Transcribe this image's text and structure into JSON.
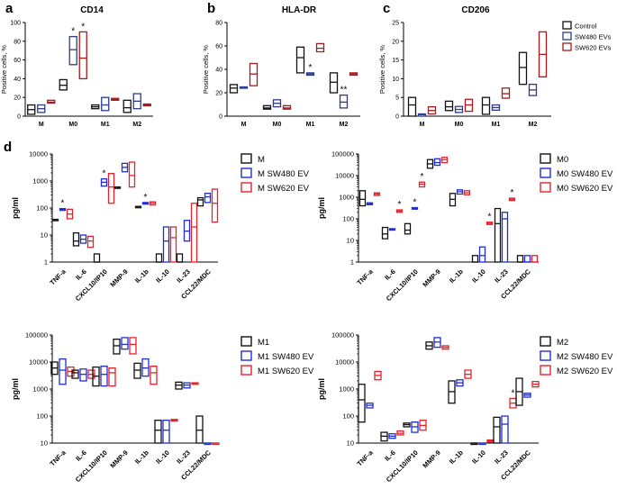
{
  "colors": {
    "black": "#111111",
    "blue": "#1e2dd8",
    "red": "#e8222a",
    "darkred": "#a8181c",
    "blue_top": "#2c3a8c"
  },
  "top_legend": [
    {
      "label": "Control",
      "color": "#111111"
    },
    {
      "label": "SW480 EVs",
      "color": "#2c3a8c"
    },
    {
      "label": "SW620 EVs",
      "color": "#a8181c"
    }
  ],
  "chart_data": [
    {
      "panel_letter": "a",
      "type": "box",
      "title": "CD14",
      "ylabel": "Positive cells, %",
      "yscale": "linear",
      "ylim": [
        0,
        100
      ],
      "yticks": [
        "0",
        "20",
        "40",
        "60",
        "80",
        "100"
      ],
      "categories": [
        "M",
        "M0",
        "M1",
        "M2"
      ],
      "series": [
        {
          "name": "Control",
          "boxes": [
            [
              2,
              7,
              12
            ],
            [
              28,
              33,
              39
            ],
            [
              8,
              10,
              12
            ],
            [
              4,
              9,
              17
            ]
          ]
        },
        {
          "name": "SW480 EVs",
          "boxes": [
            [
              4,
              8,
              12
            ],
            [
              55,
              71,
              85
            ],
            [
              6,
              12,
              20
            ],
            [
              8,
              16,
              24
            ]
          ]
        },
        {
          "name": "SW620 EVs",
          "boxes": [
            [
              14,
              15,
              17
            ],
            [
              40,
              62,
              90
            ],
            [
              17,
              18,
              19
            ],
            [
              11,
              12,
              13
            ]
          ]
        }
      ],
      "annotations": [
        {
          "category": "M0",
          "series": "SW480 EVs",
          "text": "*"
        },
        {
          "category": "M0",
          "series": "SW620 EVs",
          "text": "*"
        }
      ]
    },
    {
      "panel_letter": "b",
      "type": "box",
      "title": "HLA-DR",
      "ylabel": "Positive cells, %",
      "yscale": "linear",
      "ylim": [
        0,
        80
      ],
      "yticks": [
        "0",
        "20",
        "40",
        "60",
        "80"
      ],
      "categories": [
        "M",
        "M0",
        "M1",
        "M2"
      ],
      "series": [
        {
          "name": "Control",
          "boxes": [
            [
              20,
              24,
              27
            ],
            [
              6,
              7,
              9
            ],
            [
              37,
              50,
              59
            ],
            [
              20,
              29,
              37
            ]
          ]
        },
        {
          "name": "SW480 EVs",
          "boxes": [
            [
              24,
              24,
              25
            ],
            [
              8,
              11,
              14
            ],
            [
              35,
              36,
              37
            ],
            [
              7,
              12,
              18
            ]
          ]
        },
        {
          "name": "SW620 EVs",
          "boxes": [
            [
              26,
              36,
              45
            ],
            [
              6,
              7,
              9
            ],
            [
              55,
              58,
              62
            ],
            [
              35,
              36,
              37
            ]
          ]
        }
      ],
      "annotations": [
        {
          "category": "M1",
          "series": "SW480 EVs",
          "text": "*"
        },
        {
          "category": "M2",
          "series": "SW480 EVs",
          "text": "**"
        }
      ]
    },
    {
      "panel_letter": "c",
      "type": "box",
      "title": "CD206",
      "ylabel": "Positive cells, %",
      "yscale": "linear",
      "ylim": [
        0,
        25
      ],
      "yticks": [
        "0",
        "5",
        "10",
        "15",
        "20",
        "25"
      ],
      "categories": [
        "M",
        "M0",
        "M1",
        "M2"
      ],
      "series": [
        {
          "name": "Control",
          "boxes": [
            [
              0,
              3,
              5
            ],
            [
              1.5,
              2.5,
              4
            ],
            [
              0.5,
              3,
              5
            ],
            [
              8.5,
              13,
              17
            ]
          ]
        },
        {
          "name": "SW480 EVs",
          "boxes": [
            [
              0,
              0.4,
              0.6
            ],
            [
              1,
              1.8,
              2.6
            ],
            [
              1.6,
              2.3,
              3
            ],
            [
              5.5,
              7,
              8.5
            ]
          ]
        },
        {
          "name": "SW620 EVs",
          "boxes": [
            [
              0.6,
              1.5,
              2.5
            ],
            [
              1.3,
              3,
              4.5
            ],
            [
              4.8,
              6,
              7.5
            ],
            [
              10.5,
              16.5,
              22.5
            ]
          ]
        }
      ],
      "annotations": []
    },
    {
      "panel_letter": "d",
      "type": "box",
      "title": "",
      "ylabel": "pg/ml",
      "yscale": "log",
      "ylim": [
        1,
        10000
      ],
      "yticks": [
        "1",
        "10",
        "100",
        "1000",
        "10000"
      ],
      "categories": [
        "TNF-a",
        "IL-6",
        "CXCL10/IP10",
        "MMP-9",
        "IL-1b",
        "IL-10",
        "IL-23",
        "CCL22/MDC"
      ],
      "series": [
        {
          "name": "M",
          "boxes": [
            [
              38,
              38,
              38
            ],
            [
              4,
              6,
              12
            ],
            [
              1,
              1,
              2
            ],
            [
              600,
              600,
              600
            ],
            [
              115,
              115,
              115
            ],
            [
              1,
              1,
              2
            ],
            [
              1,
              1,
              2
            ],
            [
              120,
              200,
              240
            ]
          ]
        },
        {
          "name": "M SW480 EV",
          "boxes": [
            [
              82,
              88,
              95
            ],
            [
              5,
              7,
              10
            ],
            [
              650,
              900,
              1200
            ],
            [
              2200,
              3200,
              4500
            ],
            [
              140,
              150,
              160
            ],
            [
              1,
              6,
              20
            ],
            [
              6,
              14,
              35
            ],
            [
              160,
              260,
              350
            ]
          ]
        },
        {
          "name": "M SW620 EV",
          "boxes": [
            [
              40,
              60,
              90
            ],
            [
              3.5,
              6,
              9
            ],
            [
              150,
              600,
              1900
            ],
            [
              600,
              1600,
              5000
            ],
            [
              130,
              150,
              170
            ],
            [
              1,
              8,
              20
            ],
            [
              1,
              20,
              150
            ],
            [
              30,
              150,
              500
            ]
          ]
        }
      ],
      "annotations": [
        {
          "category": "TNF-a",
          "series": "M SW480 EV",
          "text": "*"
        },
        {
          "category": "CXCL10/IP10",
          "series": "M SW480 EV",
          "text": "*"
        },
        {
          "category": "IL-1b",
          "series": "M SW480 EV",
          "text": "*"
        }
      ]
    },
    {
      "panel_letter": "",
      "type": "box",
      "title": "",
      "ylabel": "pg/ml",
      "yscale": "log",
      "ylim": [
        1,
        100000
      ],
      "yticks": [
        "1",
        "10",
        "100",
        "1000",
        "10000",
        "100000"
      ],
      "categories": [
        "TNF-a",
        "IL-6",
        "CXCL10/IP10",
        "MMP-9",
        "IL-1b",
        "IL-10",
        "IL-23",
        "CCL22/MDC"
      ],
      "series": [
        {
          "name": "M0",
          "boxes": [
            [
              400,
              800,
              2000
            ],
            [
              12,
              20,
              40
            ],
            [
              20,
              30,
              60
            ],
            [
              22000,
              35000,
              55000
            ],
            [
              400,
              800,
              1500
            ],
            [
              1,
              1,
              2
            ],
            [
              1,
              60,
              300
            ],
            [
              1,
              1,
              2
            ]
          ]
        },
        {
          "name": "M0 SW480 EV",
          "boxes": [
            [
              450,
              500,
              550
            ],
            [
              30,
              32,
              35
            ],
            [
              280,
              300,
              330
            ],
            [
              30000,
              40000,
              60000
            ],
            [
              1400,
              1800,
              2200
            ],
            [
              1,
              2,
              5
            ],
            [
              1,
              100,
              200
            ],
            [
              1,
              1,
              2
            ]
          ]
        },
        {
          "name": "M0 SW620 EV",
          "boxes": [
            [
              1200,
              1400,
              1600
            ],
            [
              200,
              230,
              260
            ],
            [
              3000,
              4000,
              5000
            ],
            [
              40000,
              55000,
              70000
            ],
            [
              1300,
              1600,
              2000
            ],
            [
              55,
              62,
              70
            ],
            [
              700,
              800,
              900
            ],
            [
              1,
              1,
              2
            ]
          ]
        }
      ],
      "annotations": [
        {
          "category": "IL-6",
          "series": "M0 SW620 EV",
          "text": "*"
        },
        {
          "category": "CXCL10/IP10",
          "series": "M0 SW480 EV",
          "text": "*"
        },
        {
          "category": "CXCL10/IP10",
          "series": "M0 SW620 EV",
          "text": "*"
        },
        {
          "category": "IL-10",
          "series": "M0 SW620 EV",
          "text": "*"
        },
        {
          "category": "IL-23",
          "series": "M0 SW620 EV",
          "text": "*"
        }
      ]
    },
    {
      "panel_letter": "",
      "type": "box",
      "title": "",
      "ylabel": "pg/ml",
      "yscale": "log",
      "ylim": [
        10,
        100000
      ],
      "yticks": [
        "10",
        "100",
        "1000",
        "10000",
        "100000"
      ],
      "categories": [
        "TNF-a",
        "IL-6",
        "CXCL10/IP10",
        "MMP-9",
        "IL-1b",
        "IL-10",
        "IL-23",
        "CCL22/MDC"
      ],
      "series": [
        {
          "name": "M1",
          "boxes": [
            [
              3500,
              6000,
              10000
            ],
            [
              2500,
              4000,
              5000
            ],
            [
              1300,
              3000,
              6500
            ],
            [
              20000,
              40000,
              70000
            ],
            [
              2500,
              5000,
              9000
            ],
            [
              10,
              30,
              70
            ],
            [
              1000,
              1400,
              1800
            ],
            [
              10,
              30,
              100
            ]
          ]
        },
        {
          "name": "M1 SW480 EV",
          "boxes": [
            [
              1500,
              5000,
              13000
            ],
            [
              2000,
              3500,
              5500
            ],
            [
              1300,
              3500,
              7000
            ],
            [
              30000,
              45000,
              80000
            ],
            [
              3000,
              6000,
              13000
            ],
            [
              10,
              30,
              70
            ],
            [
              1100,
              1400,
              1700
            ],
            [
              10,
              10,
              10
            ]
          ]
        },
        {
          "name": "M1 SW620 EV",
          "boxes": [
            [
              3000,
              4500,
              6500
            ],
            [
              2500,
              3500,
              5000
            ],
            [
              1300,
              4000,
              6000
            ],
            [
              20000,
              45000,
              80000
            ],
            [
              1500,
              4000,
              7000
            ],
            [
              65,
              70,
              75
            ],
            [
              1500,
              1600,
              1700
            ],
            [
              10,
              10,
              10
            ]
          ]
        }
      ],
      "annotations": []
    },
    {
      "panel_letter": "",
      "type": "box",
      "title": "",
      "ylabel": "pg/ml",
      "yscale": "log",
      "ylim": [
        10,
        100000
      ],
      "yticks": [
        "10",
        "100",
        "1000",
        "10000",
        "100000"
      ],
      "categories": [
        "TNF-a",
        "IL-6",
        "CXCL10/IP10",
        "MMP-9",
        "IL-1b",
        "IL-10",
        "IL-23",
        "CCL22/MDC"
      ],
      "series": [
        {
          "name": "M2",
          "boxes": [
            [
              60,
              400,
              1500
            ],
            [
              12,
              18,
              25
            ],
            [
              40,
              48,
              55
            ],
            [
              30000,
              40000,
              55000
            ],
            [
              300,
              800,
              2000
            ],
            [
              10,
              10,
              10
            ],
            [
              10,
              40,
              90
            ],
            [
              250,
              800,
              2500
            ]
          ]
        },
        {
          "name": "M2 SW480 EV",
          "boxes": [
            [
              200,
              250,
              300
            ],
            [
              15,
              18,
              22
            ],
            [
              25,
              40,
              60
            ],
            [
              35000,
              55000,
              80000
            ],
            [
              1300,
              1700,
              2200
            ],
            [
              10,
              10,
              10
            ],
            [
              10,
              50,
              100
            ],
            [
              500,
              600,
              700
            ]
          ]
        },
        {
          "name": "M2 SW620 EV",
          "boxes": [
            [
              2200,
              3200,
              4500
            ],
            [
              20,
              23,
              28
            ],
            [
              30,
              45,
              70
            ],
            [
              30000,
              35000,
              40000
            ],
            [
              2500,
              3500,
              5000
            ],
            [
              11,
              12,
              13
            ],
            [
              200,
              300,
              450
            ],
            [
              1200,
              1500,
              1900
            ]
          ]
        }
      ],
      "annotations": [
        {
          "category": "IL-23",
          "series": "M2 SW620 EV",
          "text": "*"
        }
      ]
    }
  ]
}
